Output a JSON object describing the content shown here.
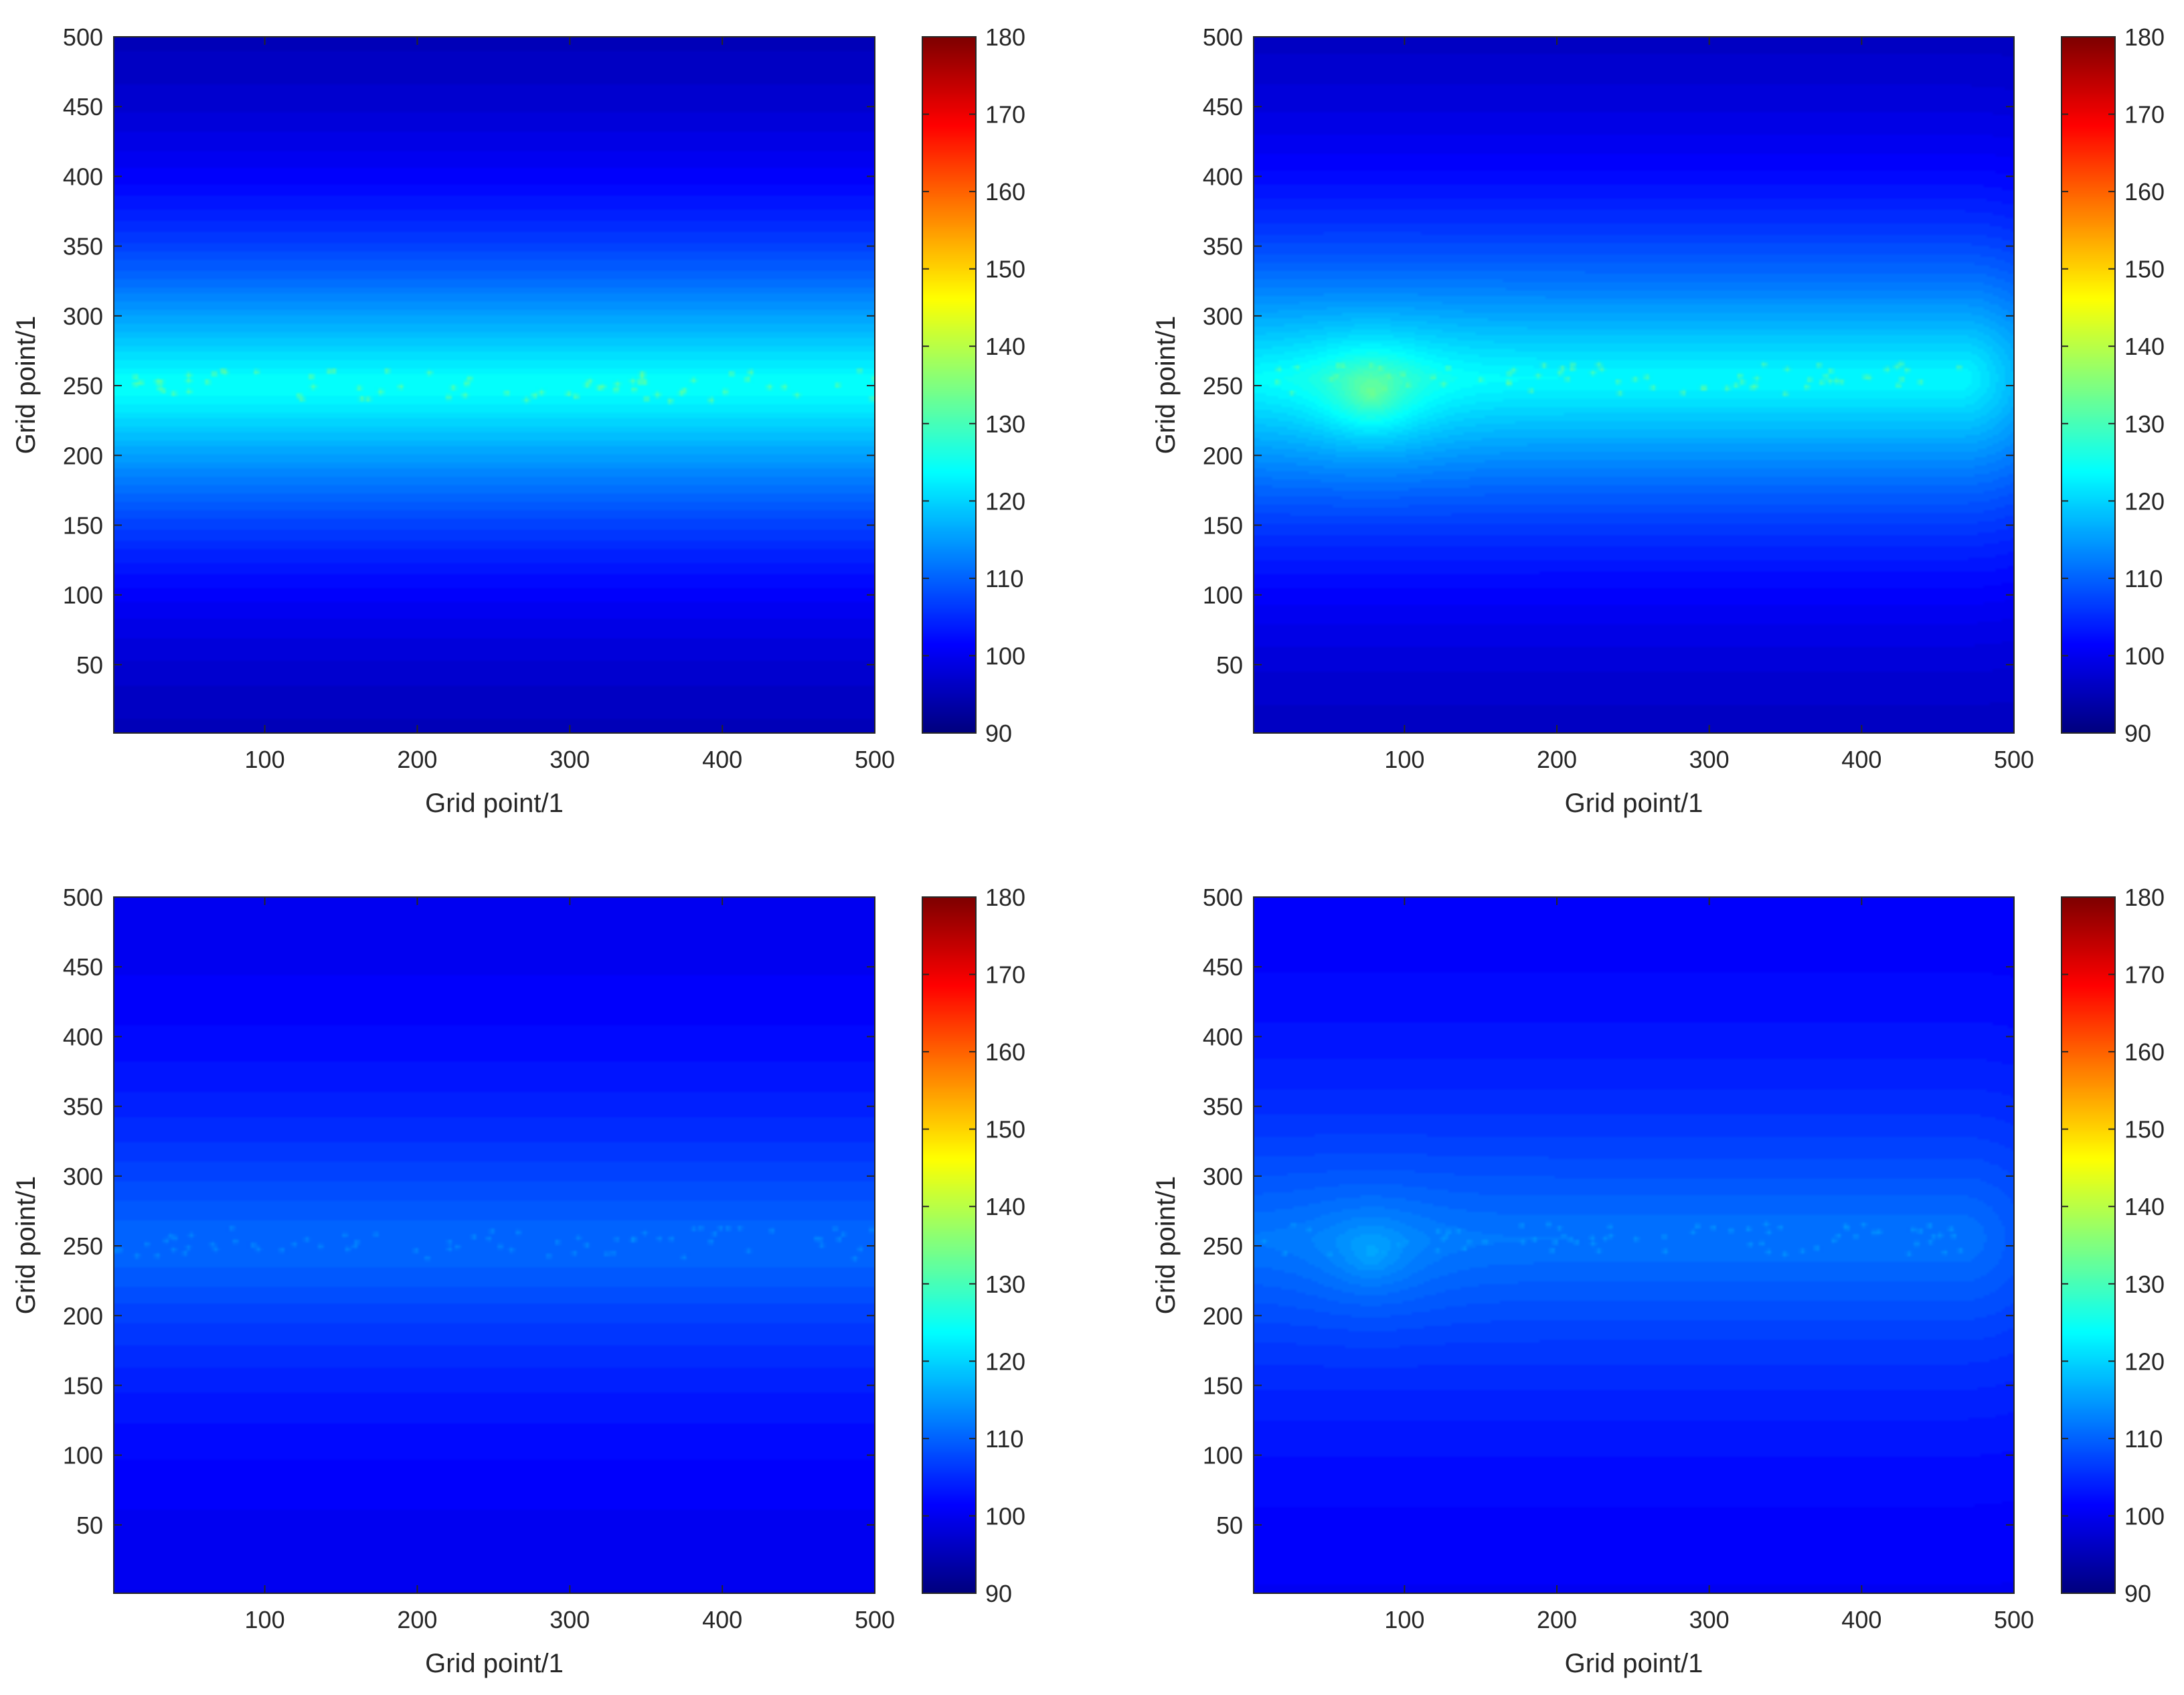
{
  "chart_data": [
    {
      "type": "heatmap",
      "title": "",
      "xlabel": "Grid point/1",
      "ylabel": "Grid point/1",
      "xlim": [
        1,
        500
      ],
      "ylim": [
        1,
        500
      ],
      "xticks": [
        100,
        200,
        300,
        400,
        500
      ],
      "yticks": [
        50,
        100,
        150,
        200,
        250,
        300,
        350,
        400,
        450,
        500
      ],
      "grid": false,
      "colormap": "jet",
      "colorbar": {
        "range": [
          90,
          180
        ],
        "ticks": [
          90,
          100,
          110,
          120,
          130,
          140,
          150,
          160,
          170,
          180
        ]
      },
      "field": {
        "band_center_y": 250,
        "band_x_extent": [
          1,
          500
        ],
        "peak_value": 125,
        "edge_value": 93,
        "hotspot": null
      }
    },
    {
      "type": "heatmap",
      "title": "",
      "xlabel": "Grid point/1",
      "ylabel": "Grid point/1",
      "xlim": [
        1,
        500
      ],
      "ylim": [
        1,
        500
      ],
      "xticks": [
        100,
        200,
        300,
        400,
        500
      ],
      "yticks": [
        50,
        100,
        150,
        200,
        250,
        300,
        350,
        400,
        450,
        500
      ],
      "grid": false,
      "colormap": "jet",
      "colorbar": {
        "range": [
          90,
          180
        ],
        "ticks": [
          90,
          100,
          110,
          120,
          130,
          140,
          150,
          160,
          170,
          180
        ]
      },
      "field": {
        "band_center_y": 255,
        "band_x_extent": [
          1,
          465
        ],
        "peak_value": 124,
        "edge_value": 94,
        "hotspot": {
          "x": 78,
          "y": 244,
          "value": 135
        }
      }
    },
    {
      "type": "heatmap",
      "title": "",
      "xlabel": "Grid point/1",
      "ylabel": "Grid point/1",
      "xlim": [
        1,
        500
      ],
      "ylim": [
        1,
        500
      ],
      "xticks": [
        100,
        200,
        300,
        400,
        500
      ],
      "yticks": [
        50,
        100,
        150,
        200,
        250,
        300,
        350,
        400,
        450,
        500
      ],
      "grid": false,
      "colormap": "jet",
      "colorbar": {
        "range": [
          90,
          180
        ],
        "ticks": [
          90,
          100,
          110,
          120,
          130,
          140,
          150,
          160,
          170,
          180
        ]
      },
      "field": {
        "band_center_y": 252,
        "band_x_extent": [
          1,
          500
        ],
        "peak_value": 111,
        "edge_value": 99,
        "hotspot": null
      }
    },
    {
      "type": "heatmap",
      "title": "",
      "xlabel": "Grid point/1",
      "ylabel": "Grid point/1",
      "xlim": [
        1,
        500
      ],
      "ylim": [
        1,
        500
      ],
      "xticks": [
        100,
        200,
        300,
        400,
        500
      ],
      "yticks": [
        50,
        100,
        150,
        200,
        250,
        300,
        350,
        400,
        450,
        500
      ],
      "grid": false,
      "colormap": "jet",
      "colorbar": {
        "range": [
          90,
          180
        ],
        "ticks": [
          90,
          100,
          110,
          120,
          130,
          140,
          150,
          160,
          170,
          180
        ]
      },
      "field": {
        "band_center_y": 255,
        "band_x_extent": [
          1,
          465
        ],
        "peak_value": 112,
        "edge_value": 100,
        "hotspot": {
          "x": 78,
          "y": 244,
          "value": 117
        }
      }
    }
  ]
}
